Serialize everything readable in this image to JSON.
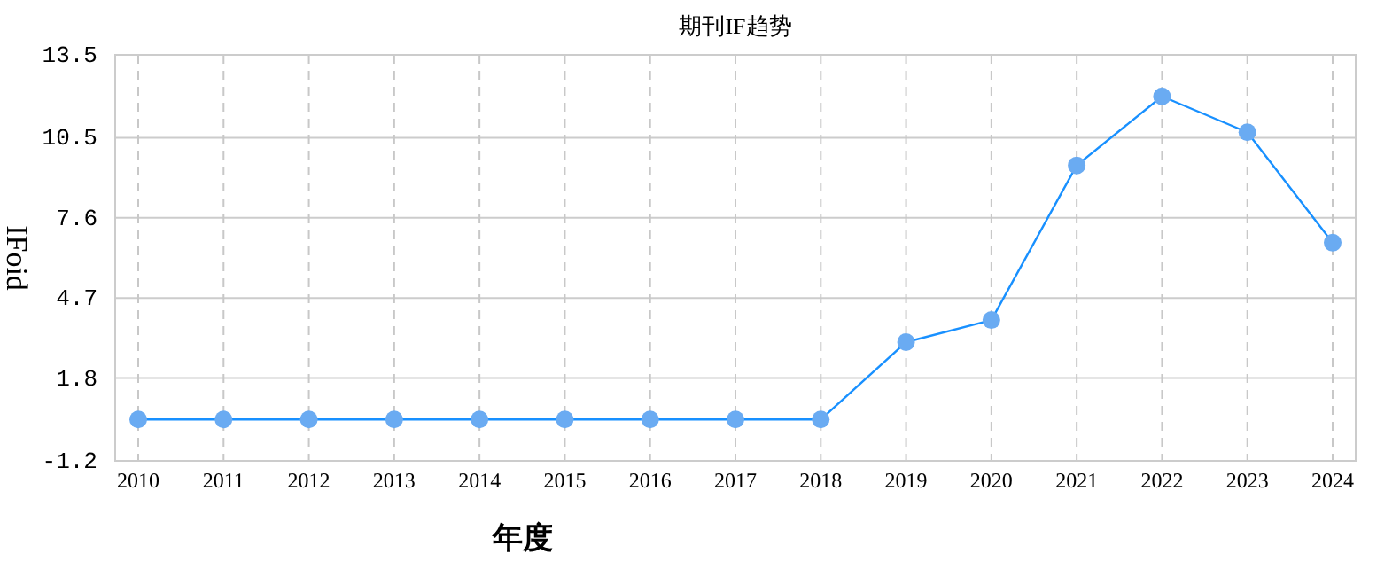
{
  "chart_data": {
    "type": "line",
    "title": "期刊IF趋势",
    "xlabel": "年度",
    "ylabel": "IFoid",
    "categories": [
      "2010",
      "2011",
      "2012",
      "2013",
      "2014",
      "2015",
      "2016",
      "2017",
      "2018",
      "2019",
      "2020",
      "2021",
      "2022",
      "2023",
      "2024"
    ],
    "series": [
      {
        "color": "#1890ff",
        "values": [
          0.3,
          0.3,
          0.3,
          0.3,
          0.3,
          0.3,
          0.3,
          0.3,
          0.3,
          3.1,
          3.9,
          9.5,
          12.0,
          10.7,
          6.7
        ]
      }
    ],
    "ylim": [
      -1.2,
      13.5
    ],
    "yticks": [
      -1.2,
      1.8,
      4.7,
      7.6,
      10.5,
      13.5
    ],
    "grid": true,
    "marker": "circle",
    "line_style": "solid"
  }
}
